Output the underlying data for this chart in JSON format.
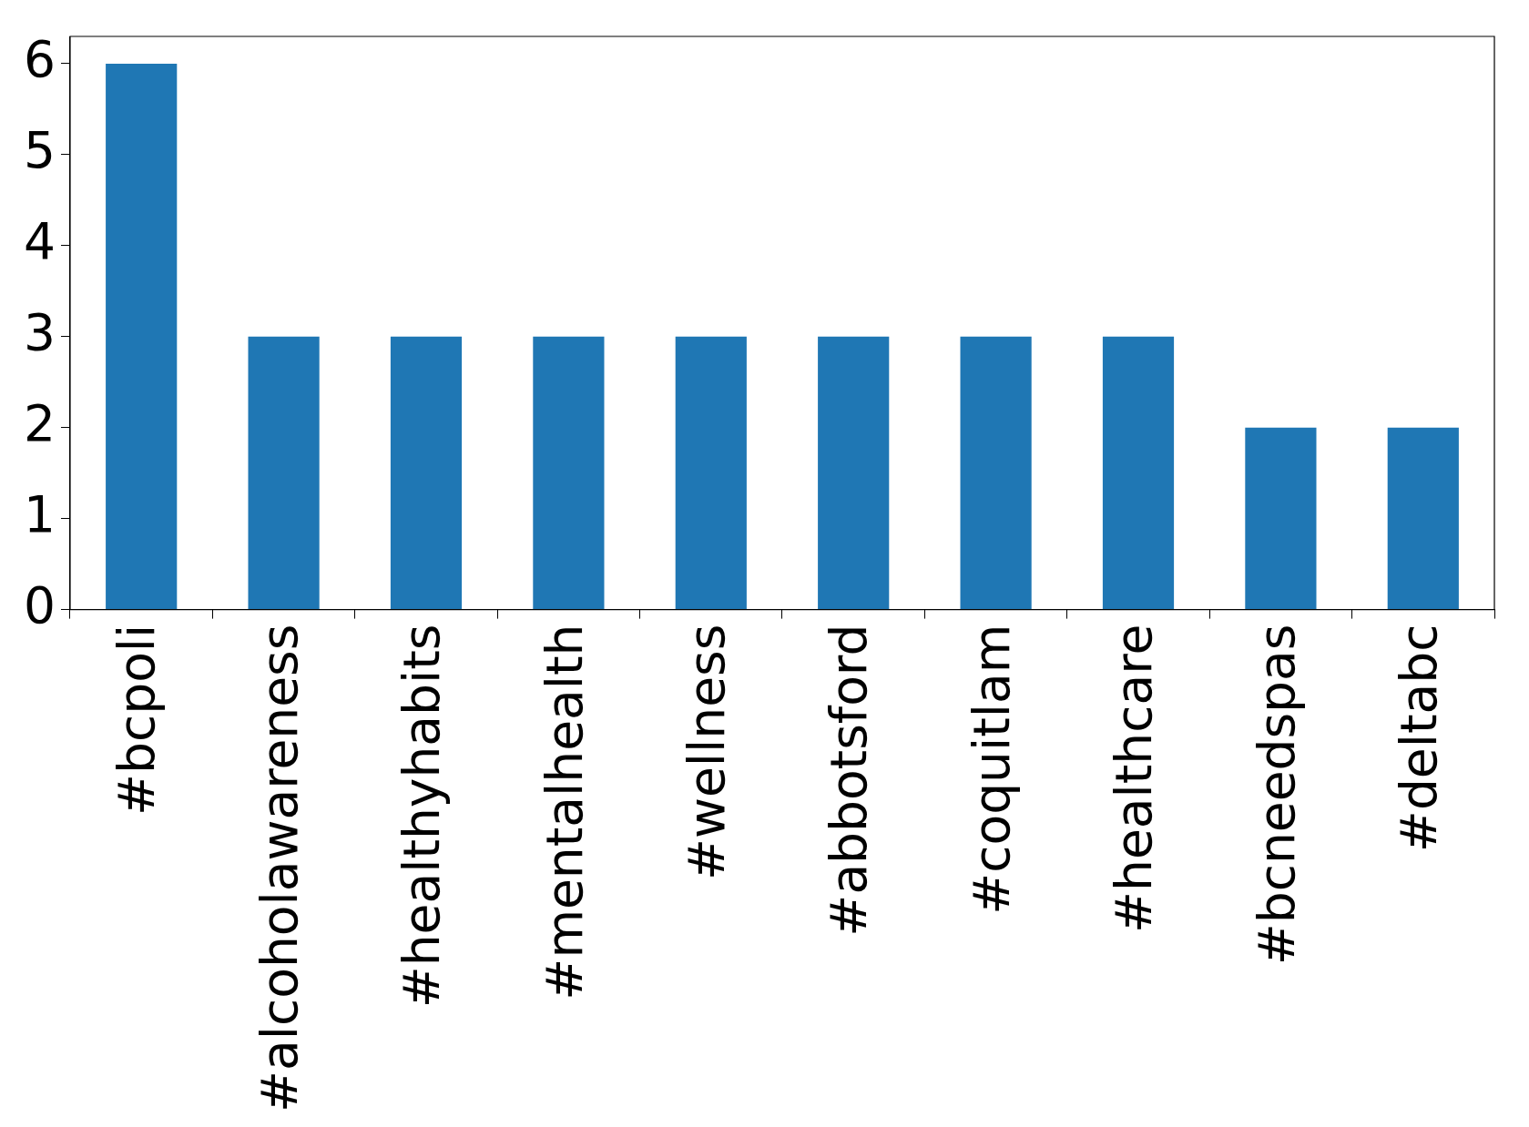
{
  "chart_data": {
    "type": "bar",
    "categories": [
      "#bcpoli",
      "#alcoholawareness",
      "#healthyhabits",
      "#mentalhealth",
      "#wellness",
      "#abbotsford",
      "#coquitlam",
      "#healthcare",
      "#bcneedspas",
      "#deltabc"
    ],
    "values": [
      6,
      3,
      3,
      3,
      3,
      3,
      3,
      3,
      2,
      2
    ],
    "color": "#1f77b4",
    "ylim": [
      0,
      6.3
    ],
    "yticks": [
      0,
      1,
      2,
      3,
      4,
      5,
      6
    ]
  }
}
